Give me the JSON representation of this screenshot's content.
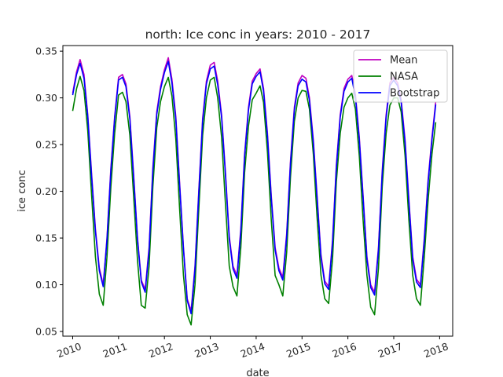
{
  "chart_data": {
    "type": "line",
    "title": "north: Ice conc in years: 2010 - 2017",
    "xlabel": "date",
    "ylabel": "ice conc",
    "xlim": [
      "2009-10-15",
      "2018-04-15"
    ],
    "ylim": [
      0.045,
      0.356
    ],
    "x_ticks": [
      "2010",
      "2011",
      "2012",
      "2013",
      "2014",
      "2015",
      "2016",
      "2017",
      "2018"
    ],
    "y_ticks": [
      "0.05",
      "0.10",
      "0.15",
      "0.20",
      "0.25",
      "0.30",
      "0.35"
    ],
    "grid": false,
    "legend_position": "top-right",
    "x": [
      "2010-01",
      "2010-02",
      "2010-03",
      "2010-04",
      "2010-05",
      "2010-06",
      "2010-07",
      "2010-08",
      "2010-09",
      "2010-10",
      "2010-11",
      "2010-12",
      "2011-01",
      "2011-02",
      "2011-03",
      "2011-04",
      "2011-05",
      "2011-06",
      "2011-07",
      "2011-08",
      "2011-09",
      "2011-10",
      "2011-11",
      "2011-12",
      "2012-01",
      "2012-02",
      "2012-03",
      "2012-04",
      "2012-05",
      "2012-06",
      "2012-07",
      "2012-08",
      "2012-09",
      "2012-10",
      "2012-11",
      "2012-12",
      "2013-01",
      "2013-02",
      "2013-03",
      "2013-04",
      "2013-05",
      "2013-06",
      "2013-07",
      "2013-08",
      "2013-09",
      "2013-10",
      "2013-11",
      "2013-12",
      "2014-01",
      "2014-02",
      "2014-03",
      "2014-04",
      "2014-05",
      "2014-06",
      "2014-07",
      "2014-08",
      "2014-09",
      "2014-10",
      "2014-11",
      "2014-12",
      "2015-01",
      "2015-02",
      "2015-03",
      "2015-04",
      "2015-05",
      "2015-06",
      "2015-07",
      "2015-08",
      "2015-09",
      "2015-10",
      "2015-11",
      "2015-12",
      "2016-01",
      "2016-02",
      "2016-03",
      "2016-04",
      "2016-05",
      "2016-06",
      "2016-07",
      "2016-08",
      "2016-09",
      "2016-10",
      "2016-11",
      "2016-12",
      "2017-01",
      "2017-02",
      "2017-03",
      "2017-04",
      "2017-05",
      "2017-06",
      "2017-07",
      "2017-08",
      "2017-09",
      "2017-10",
      "2017-11",
      "2017-12"
    ],
    "series": [
      {
        "name": "Mean",
        "color": "#bf00bf",
        "values": [
          0.305,
          0.328,
          0.341,
          0.325,
          0.282,
          0.218,
          0.16,
          0.118,
          0.1,
          0.15,
          0.225,
          0.28,
          0.322,
          0.325,
          0.315,
          0.28,
          0.218,
          0.15,
          0.105,
          0.095,
          0.14,
          0.225,
          0.285,
          0.312,
          0.33,
          0.343,
          0.32,
          0.28,
          0.21,
          0.14,
          0.085,
          0.072,
          0.12,
          0.2,
          0.278,
          0.318,
          0.335,
          0.338,
          0.318,
          0.282,
          0.222,
          0.152,
          0.12,
          0.11,
          0.16,
          0.24,
          0.29,
          0.318,
          0.326,
          0.331,
          0.31,
          0.262,
          0.196,
          0.14,
          0.118,
          0.108,
          0.155,
          0.232,
          0.29,
          0.316,
          0.324,
          0.321,
          0.3,
          0.255,
          0.195,
          0.132,
          0.104,
          0.098,
          0.148,
          0.228,
          0.282,
          0.31,
          0.32,
          0.324,
          0.304,
          0.258,
          0.196,
          0.13,
          0.1,
          0.092,
          0.14,
          0.222,
          0.282,
          0.316,
          0.322,
          0.316,
          0.298,
          0.255,
          0.192,
          0.13,
          0.106,
          0.1,
          0.15,
          0.212,
          0.258,
          0.296
        ]
      },
      {
        "name": "NASA",
        "color": "#008000",
        "values": [
          0.286,
          0.31,
          0.323,
          0.308,
          0.265,
          0.195,
          0.13,
          0.09,
          0.078,
          0.13,
          0.205,
          0.262,
          0.303,
          0.306,
          0.296,
          0.26,
          0.195,
          0.126,
          0.078,
          0.075,
          0.12,
          0.205,
          0.268,
          0.296,
          0.312,
          0.322,
          0.302,
          0.256,
          0.182,
          0.11,
          0.068,
          0.057,
          0.1,
          0.18,
          0.26,
          0.3,
          0.319,
          0.322,
          0.3,
          0.258,
          0.188,
          0.12,
          0.098,
          0.088,
          0.14,
          0.22,
          0.27,
          0.298,
          0.305,
          0.313,
          0.295,
          0.242,
          0.17,
          0.11,
          0.1,
          0.088,
          0.135,
          0.215,
          0.275,
          0.3,
          0.308,
          0.307,
          0.288,
          0.24,
          0.172,
          0.11,
          0.085,
          0.08,
          0.128,
          0.21,
          0.262,
          0.29,
          0.3,
          0.305,
          0.288,
          0.238,
          0.17,
          0.11,
          0.076,
          0.068,
          0.118,
          0.205,
          0.262,
          0.292,
          0.3,
          0.3,
          0.285,
          0.238,
          0.17,
          0.11,
          0.085,
          0.078,
          0.13,
          0.19,
          0.24,
          0.274
        ]
      },
      {
        "name": "Bootstrap",
        "color": "#0000ff",
        "values": [
          0.303,
          0.325,
          0.337,
          0.321,
          0.28,
          0.215,
          0.157,
          0.115,
          0.098,
          0.148,
          0.222,
          0.278,
          0.319,
          0.322,
          0.312,
          0.277,
          0.215,
          0.148,
          0.103,
          0.092,
          0.137,
          0.222,
          0.282,
          0.309,
          0.327,
          0.339,
          0.316,
          0.277,
          0.207,
          0.138,
          0.083,
          0.069,
          0.117,
          0.197,
          0.275,
          0.315,
          0.331,
          0.334,
          0.314,
          0.279,
          0.219,
          0.149,
          0.117,
          0.107,
          0.157,
          0.237,
          0.287,
          0.315,
          0.323,
          0.328,
          0.307,
          0.259,
          0.193,
          0.137,
          0.115,
          0.105,
          0.152,
          0.229,
          0.287,
          0.313,
          0.32,
          0.317,
          0.297,
          0.252,
          0.192,
          0.129,
          0.101,
          0.095,
          0.145,
          0.225,
          0.279,
          0.307,
          0.317,
          0.321,
          0.301,
          0.255,
          0.193,
          0.127,
          0.097,
          0.089,
          0.137,
          0.219,
          0.279,
          0.313,
          0.319,
          0.313,
          0.295,
          0.252,
          0.189,
          0.127,
          0.103,
          0.097,
          0.147,
          0.209,
          0.255,
          0.293
        ]
      }
    ]
  }
}
